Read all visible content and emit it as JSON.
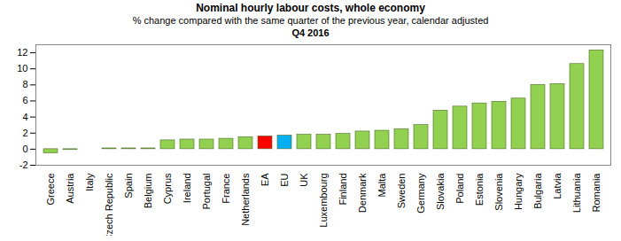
{
  "chart_data": {
    "type": "bar",
    "title": "Nominal hourly labour costs, whole economy",
    "subtitle": [
      "% change compared with the same quarter of the previous year, calendar adjusted",
      "Q4 2016"
    ],
    "categories": [
      "Greece",
      "Austria",
      "Italy",
      "Czech Republic",
      "Spain",
      "Belgium",
      "Cyprus",
      "Ireland",
      "Portugal",
      "France",
      "Netherlands",
      "EA",
      "EU",
      "UK",
      "Luxembourg",
      "Finland",
      "Denmark",
      "Malta",
      "Sweden",
      "Germany",
      "Slovakia",
      "Poland",
      "Estonia",
      "Slovenia",
      "Hungary",
      "Bulgaria",
      "Latvia",
      "Lithuania",
      "Romania"
    ],
    "values": [
      -0.5,
      -0.1,
      0.0,
      0.1,
      0.1,
      0.1,
      1.1,
      1.2,
      1.2,
      1.3,
      1.5,
      1.6,
      1.7,
      1.8,
      1.8,
      1.9,
      2.2,
      2.3,
      2.5,
      3.0,
      4.8,
      5.3,
      5.7,
      5.9,
      6.3,
      8.0,
      8.1,
      10.6,
      12.3
    ],
    "colors": [
      "#92d050",
      "#92d050",
      "#92d050",
      "#92d050",
      "#92d050",
      "#92d050",
      "#92d050",
      "#92d050",
      "#92d050",
      "#92d050",
      "#92d050",
      "#ff0000",
      "#00b0f0",
      "#92d050",
      "#92d050",
      "#92d050",
      "#92d050",
      "#92d050",
      "#92d050",
      "#92d050",
      "#92d050",
      "#92d050",
      "#92d050",
      "#92d050",
      "#92d050",
      "#92d050",
      "#92d050",
      "#92d050",
      "#92d050"
    ],
    "ylim": [
      -2,
      13
    ],
    "yticks": [
      -2,
      0,
      2,
      4,
      6,
      8,
      10,
      12
    ],
    "grid": false
  }
}
